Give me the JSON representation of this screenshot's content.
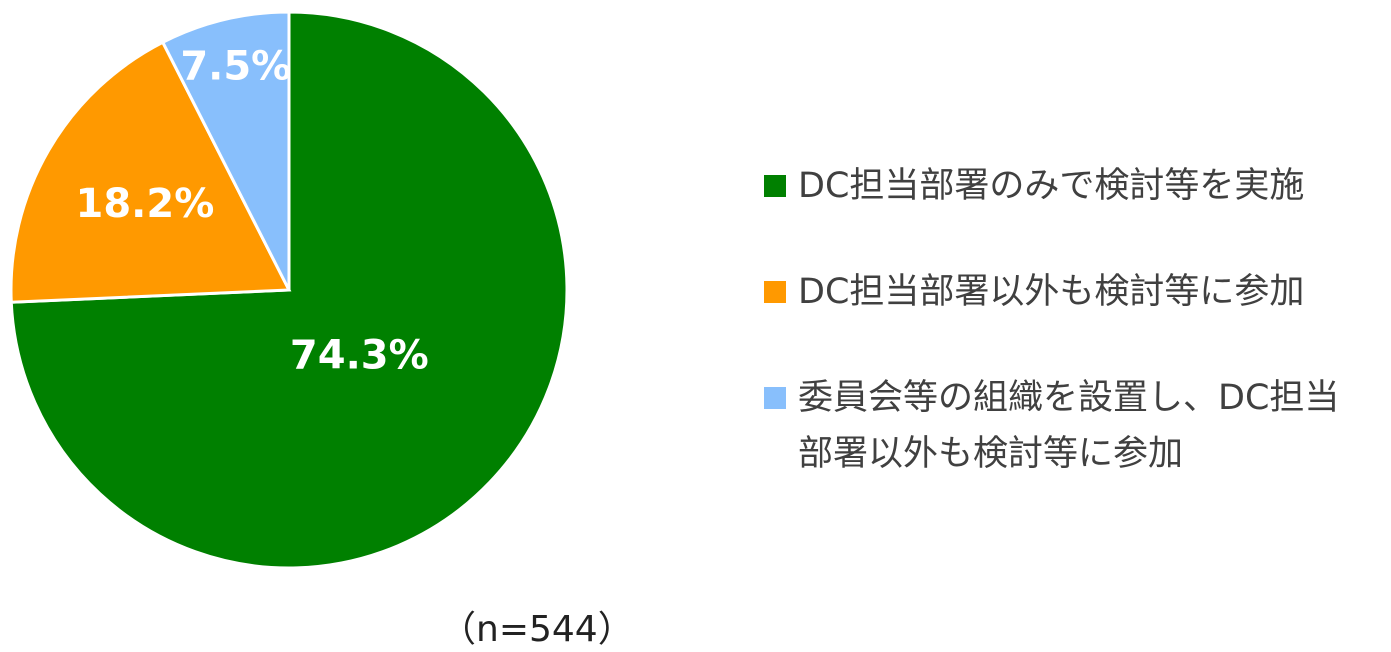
{
  "chart_data": {
    "type": "pie",
    "categories": [
      "DC担当部署のみで検討等を実施",
      "DC担当部署以外も検討等に参加",
      "委員会等の組織を設置し、DC担当部署以外も検討等に参加"
    ],
    "values": [
      74.3,
      18.2,
      7.5
    ],
    "value_labels": [
      "74.3%",
      "18.2%",
      "7.5%"
    ],
    "colors": [
      "#008000",
      "#ff9900",
      "#88bffc"
    ],
    "note": "（n=544）"
  }
}
